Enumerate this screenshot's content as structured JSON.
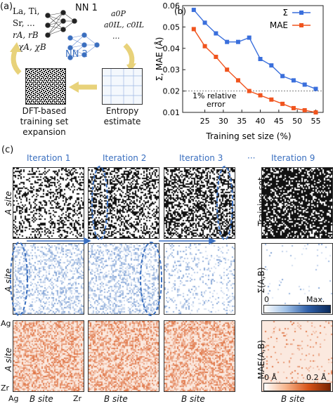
{
  "panel_a": {
    "label": "(a)",
    "features_block": {
      "line1": "La, Ti,",
      "line2": "Sr, ...",
      "line3": "rA, rB",
      "line4": "χA, χB"
    },
    "nn1": "NN 1",
    "nn2": "NN 2",
    "outputs_block": {
      "line1": "a0P",
      "line2": "a0IL, c0IL",
      "line3": "..."
    },
    "dft_caption": [
      "DFT-based",
      "training set",
      "expansion"
    ],
    "entropy_caption": [
      "Entropy",
      "estimate"
    ]
  },
  "panel_b": {
    "label": "(b)",
    "annotation_line1": "1% relative",
    "annotation_line2": "error"
  },
  "panel_c": {
    "label": "(c)",
    "iterations": [
      "Iteration 1",
      "Iteration 2",
      "Iteration 3",
      "Iteration 9"
    ],
    "ellipsis": "···",
    "row_labels": [
      "A site",
      "A site",
      "A site"
    ],
    "right_labels": [
      "Training set",
      "Σ(A,B)",
      "MAE(A,B)"
    ],
    "ag": "Ag",
    "zr_left": "Zr",
    "zr_bottom": "Zr",
    "ag_bottom": "Ag",
    "b_site": [
      "B site",
      "B site",
      "B site",
      "B site"
    ],
    "sigma_scale": {
      "min": "0",
      "max": "Max."
    },
    "mae_scale": {
      "min": "0 Å",
      "max": "0.2 Å"
    }
  },
  "chart_data": {
    "type": "line",
    "xlabel": "Training set size (%)",
    "ylabel": "Σ, MAE (Å)",
    "xlim": [
      19,
      57
    ],
    "ylim": [
      0.01,
      0.06
    ],
    "xticks": [
      25,
      30,
      35,
      40,
      45,
      50,
      55
    ],
    "yticks": [
      0.01,
      0.02,
      0.03,
      0.04,
      0.05,
      0.06
    ],
    "ytick_labels": [
      "0.01",
      "0.02",
      "0.03",
      "0.04",
      "0.05",
      "0.06"
    ],
    "grid": false,
    "legend_position": "top-right",
    "reference_line": {
      "y": 0.02
    },
    "series": [
      {
        "name": "Σ",
        "color": "#3a6fdc",
        "x": [
          22,
          25,
          28,
          31,
          34,
          37,
          40,
          43,
          46,
          49,
          52,
          55
        ],
        "y": [
          0.058,
          0.052,
          0.047,
          0.043,
          0.043,
          0.045,
          0.035,
          0.032,
          0.027,
          0.025,
          0.023,
          0.021
        ]
      },
      {
        "name": "MAE",
        "color": "#f0541e",
        "x": [
          22,
          25,
          28,
          31,
          34,
          37,
          40,
          43,
          46,
          49,
          52,
          55
        ],
        "y": [
          0.049,
          0.041,
          0.036,
          0.03,
          0.025,
          0.02,
          0.018,
          0.016,
          0.014,
          0.012,
          0.011,
          0.01
        ]
      }
    ]
  }
}
